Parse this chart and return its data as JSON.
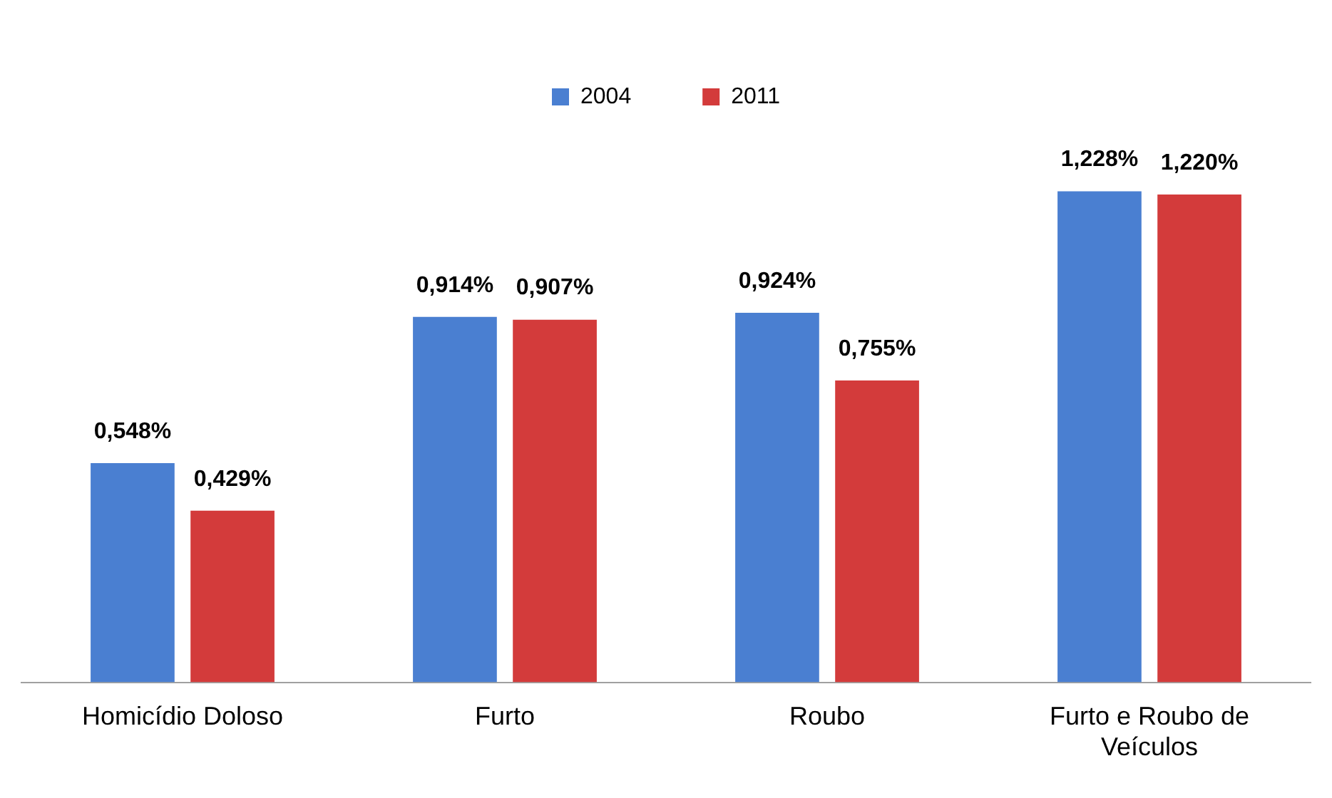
{
  "chart_data": {
    "type": "bar",
    "categories": [
      "Homicídio Doloso",
      "Furto",
      "Roubo",
      "Furto e Roubo de Veículos"
    ],
    "series": [
      {
        "name": "2004",
        "color": "#4a7fd1",
        "values": [
          0.548,
          0.914,
          0.924,
          1.228
        ],
        "value_labels": [
          "0,548%",
          "0,914%",
          "0,924%",
          "1,228%"
        ]
      },
      {
        "name": "2011",
        "color": "#d33b3b",
        "values": [
          0.429,
          0.907,
          0.755,
          1.22
        ],
        "value_labels": [
          "0,429%",
          "0,907%",
          "0,755%",
          "1,220%"
        ]
      }
    ],
    "legend": "top",
    "grid": false,
    "tick_labels": "x"
  }
}
